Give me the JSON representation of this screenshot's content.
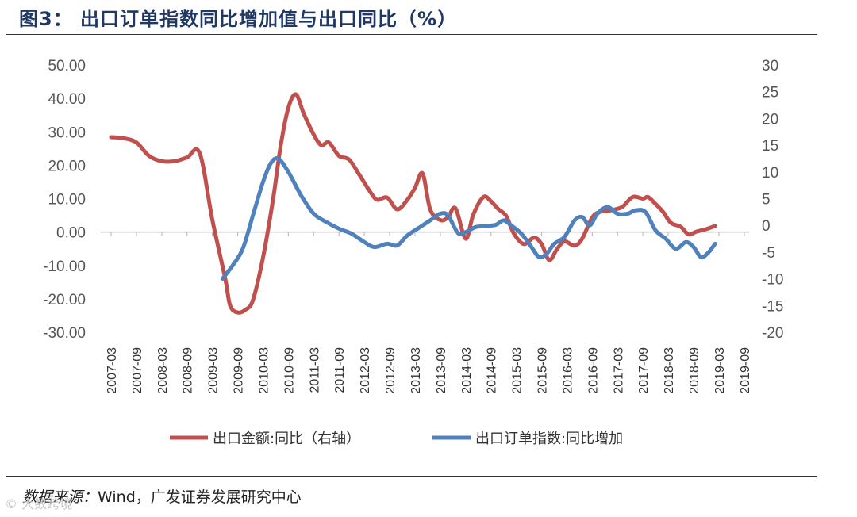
{
  "header": {
    "title": "图3： 出口订单指数同比增加值与出口同比（%）"
  },
  "footer": {
    "source_label": "数据来源：",
    "source_text": "Wind，广发证券发展研究中心",
    "watermark": "© 大数跨境"
  },
  "colors": {
    "export": "#c0504d",
    "orders": "#4f81bd"
  },
  "chart_data": {
    "type": "line",
    "title": "出口订单指数同比增加值与出口同比（%）",
    "categories": [
      "2007-03",
      "2007-09",
      "2008-03",
      "2008-09",
      "2009-03",
      "2009-09",
      "2010-03",
      "2010-09",
      "2011-03",
      "2011-09",
      "2012-03",
      "2012-09",
      "2013-03",
      "2013-09",
      "2014-03",
      "2014-09",
      "2015-03",
      "2015-09",
      "2016-03",
      "2016-09",
      "2017-03",
      "2017-09",
      "2018-03",
      "2018-09",
      "2019-03",
      "2019-09"
    ],
    "left_axis": {
      "ylim": [
        -30,
        50
      ],
      "ticks": [
        "50.00",
        "40.00",
        "30.00",
        "20.00",
        "10.00",
        "0.00",
        "-10.00",
        "-20.00",
        "-30.00"
      ]
    },
    "right_axis": {
      "ylim": [
        -20,
        30
      ],
      "ticks": [
        "30",
        "25",
        "20",
        "15",
        "10",
        "5",
        "0",
        "-5",
        "-10",
        "-15",
        "-20"
      ]
    },
    "series": [
      {
        "name": "出口金额:同比（右轴）",
        "axis": "right",
        "color": "#c0504d",
        "points": [
          [
            0,
            16.5
          ],
          [
            0.5,
            16.3
          ],
          [
            1,
            15.5
          ],
          [
            1.5,
            13.0
          ],
          [
            2,
            12.0
          ],
          [
            2.5,
            12.0
          ],
          [
            3,
            12.7
          ],
          [
            3.5,
            13.5
          ],
          [
            4,
            1.0
          ],
          [
            4.5,
            -9.8
          ],
          [
            4.7,
            -15.0
          ],
          [
            5,
            -16.3
          ],
          [
            5.3,
            -15.8
          ],
          [
            5.6,
            -14.0
          ],
          [
            6,
            -6.0
          ],
          [
            6.4,
            5.0
          ],
          [
            6.7,
            15.0
          ],
          [
            7,
            22.0
          ],
          [
            7.3,
            24.5
          ],
          [
            7.6,
            21.0
          ],
          [
            8,
            17.0
          ],
          [
            8.3,
            15.0
          ],
          [
            8.6,
            15.5
          ],
          [
            9,
            13.0
          ],
          [
            9.4,
            12.3
          ],
          [
            9.8,
            9.5
          ],
          [
            10.2,
            6.5
          ],
          [
            10.5,
            4.8
          ],
          [
            10.9,
            5.2
          ],
          [
            11.3,
            3.0
          ],
          [
            11.7,
            4.8
          ],
          [
            12,
            7.0
          ],
          [
            12.3,
            9.7
          ],
          [
            12.6,
            3.0
          ],
          [
            13,
            1.0
          ],
          [
            13.3,
            1.5
          ],
          [
            13.6,
            3.2
          ],
          [
            14,
            -2.5
          ],
          [
            14.3,
            2.0
          ],
          [
            14.7,
            5.3
          ],
          [
            15,
            4.5
          ],
          [
            15.3,
            3.0
          ],
          [
            15.6,
            1.8
          ],
          [
            15.9,
            -1.5
          ],
          [
            16.3,
            -3.5
          ],
          [
            16.7,
            -2.3
          ],
          [
            17,
            -3.5
          ],
          [
            17.3,
            -6.5
          ],
          [
            17.6,
            -4.5
          ],
          [
            17.9,
            -3.0
          ],
          [
            18.3,
            -3.8
          ],
          [
            18.6,
            -2.5
          ],
          [
            19,
            1.5
          ],
          [
            19.3,
            2.5
          ],
          [
            19.6,
            2.7
          ],
          [
            19.9,
            3.0
          ],
          [
            20.2,
            3.5
          ],
          [
            20.6,
            5.3
          ],
          [
            21,
            5.0
          ],
          [
            21.2,
            5.3
          ],
          [
            21.5,
            4.0
          ],
          [
            21.8,
            2.5
          ],
          [
            22.1,
            0.5
          ],
          [
            22.5,
            -0.3
          ],
          [
            22.8,
            -1.7
          ],
          [
            23.1,
            -1.2
          ],
          [
            23.5,
            -0.7
          ],
          [
            23.85,
            -0.1
          ]
        ]
      },
      {
        "name": "出口订单指数:同比增加",
        "axis": "left",
        "color": "#4f81bd",
        "points": [
          [
            4.4,
            -14.0
          ],
          [
            4.8,
            -10.0
          ],
          [
            5.2,
            -5.0
          ],
          [
            5.6,
            5.0
          ],
          [
            6,
            15.0
          ],
          [
            6.3,
            20.5
          ],
          [
            6.6,
            22.0
          ],
          [
            7,
            18.0
          ],
          [
            7.5,
            11.0
          ],
          [
            8,
            5.5
          ],
          [
            8.5,
            3.0
          ],
          [
            9,
            1.0
          ],
          [
            9.5,
            -0.5
          ],
          [
            10,
            -3.0
          ],
          [
            10.4,
            -4.5
          ],
          [
            10.9,
            -3.5
          ],
          [
            11.3,
            -4.0
          ],
          [
            11.7,
            -1.0
          ],
          [
            12.2,
            1.5
          ],
          [
            12.6,
            3.5
          ],
          [
            13,
            5.5
          ],
          [
            13.3,
            5.0
          ],
          [
            13.7,
            -0.3
          ],
          [
            14,
            0.0
          ],
          [
            14.4,
            1.5
          ],
          [
            14.8,
            1.8
          ],
          [
            15.2,
            2.2
          ],
          [
            15.5,
            3.5
          ],
          [
            15.8,
            2.0
          ],
          [
            16.2,
            -0.5
          ],
          [
            16.6,
            -4.5
          ],
          [
            16.9,
            -7.5
          ],
          [
            17.2,
            -6.5
          ],
          [
            17.5,
            -3.5
          ],
          [
            17.9,
            -1.5
          ],
          [
            18.3,
            3.5
          ],
          [
            18.6,
            4.5
          ],
          [
            18.9,
            2.0
          ],
          [
            19.2,
            5.5
          ],
          [
            19.6,
            7.5
          ],
          [
            20,
            5.5
          ],
          [
            20.4,
            5.5
          ],
          [
            20.7,
            6.5
          ],
          [
            21.1,
            6.0
          ],
          [
            21.5,
            0.5
          ],
          [
            21.9,
            -2.0
          ],
          [
            22.3,
            -5.0
          ],
          [
            22.7,
            -3.0
          ],
          [
            23,
            -4.5
          ],
          [
            23.3,
            -7.5
          ],
          [
            23.6,
            -6.0
          ],
          [
            23.85,
            -3.5
          ]
        ]
      }
    ],
    "legend": [
      "出口金额:同比（右轴）",
      "出口订单指数:同比增加"
    ]
  }
}
